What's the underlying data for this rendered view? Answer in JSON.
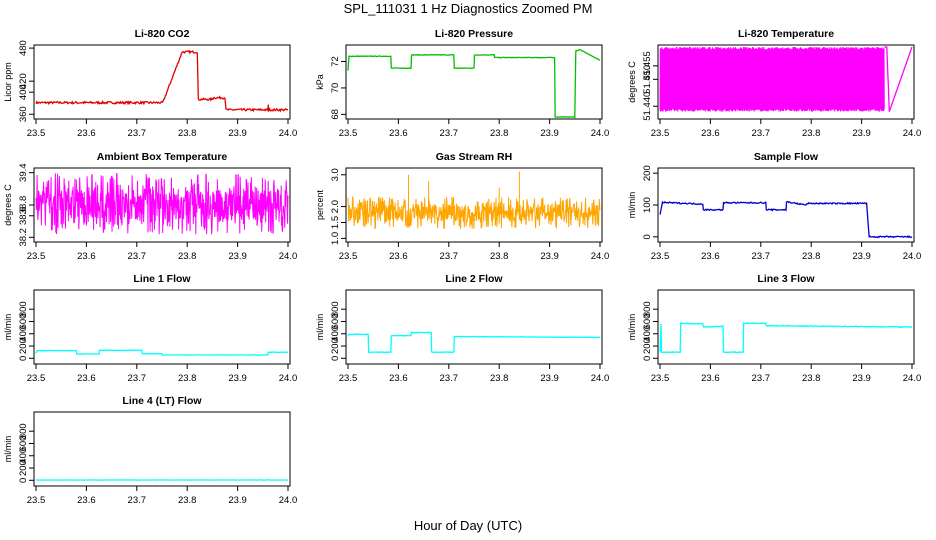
{
  "figure": {
    "title": "SPL_111031  1 Hz Diagnostics Zoomed PM",
    "xlabel": "Hour of Day (UTC)"
  },
  "chart_data": [
    {
      "type": "line",
      "title": "Li-820 CO2",
      "ylabel": "Licor ppm",
      "color": "#e00000",
      "noise": 2,
      "xlim": [
        23.5,
        24.0
      ],
      "xticks": [
        "23.5",
        "23.6",
        "23.7",
        "23.8",
        "23.9",
        "24.0"
      ],
      "ylim": [
        355,
        482
      ],
      "yticks": [
        "360",
        "400",
        "420",
        "480"
      ],
      "series": [
        {
          "name": "CO2",
          "x": [
            23.5,
            23.75,
            23.752,
            23.79,
            23.792,
            23.82,
            23.822,
            23.85,
            23.852,
            23.875,
            23.877,
            23.96,
            23.961,
            23.962,
            23.97,
            24.0
          ],
          "y": [
            381,
            381,
            382,
            473,
            473,
            473,
            387,
            387,
            390,
            390,
            368,
            368,
            376,
            368,
            368,
            368
          ]
        }
      ]
    },
    {
      "type": "line",
      "title": "Li-820 Pressure",
      "ylabel": "kPa",
      "color": "#00c000",
      "noise": 0.02,
      "xlim": [
        23.5,
        24.0
      ],
      "xticks": [
        "23.5",
        "23.6",
        "23.7",
        "23.8",
        "23.9",
        "24.0"
      ],
      "ylim": [
        67.8,
        73.1
      ],
      "yticks": [
        "68",
        "70",
        "72"
      ],
      "series": [
        {
          "name": "Pressure",
          "x": [
            23.5,
            23.502,
            23.585,
            23.586,
            23.625,
            23.626,
            23.71,
            23.711,
            23.75,
            23.751,
            23.79,
            23.791,
            23.91,
            23.911,
            23.95,
            23.952,
            23.96,
            24.0
          ],
          "y": [
            71.3,
            72.4,
            72.4,
            71.5,
            71.5,
            72.5,
            72.5,
            71.5,
            71.5,
            72.5,
            72.5,
            72.3,
            72.3,
            67.8,
            67.8,
            72.8,
            72.9,
            72.1
          ]
        }
      ]
    },
    {
      "type": "line",
      "title": "Li-820 Temperature",
      "ylabel": "degrees C",
      "color": "#ff00ff",
      "noise": 0,
      "fill": [
        51.438,
        51.462
      ],
      "fillEnd": 23.945,
      "xlim": [
        23.5,
        24.0
      ],
      "xticks": [
        "23.5",
        "23.6",
        "23.7",
        "23.8",
        "23.9",
        "24.0"
      ],
      "ylim": [
        51.436,
        51.462
      ],
      "yticks": [
        "51.440",
        "51.450",
        "51.455"
      ],
      "series": [
        {
          "name": "Temperature",
          "x": [
            23.945,
            23.95,
            23.955,
            24.0
          ],
          "y": [
            51.462,
            51.462,
            51.438,
            51.462
          ]
        }
      ]
    },
    {
      "type": "noise",
      "title": "Ambient Box Temperature",
      "ylabel": "degrees C",
      "color": "#ff00ff",
      "xlim": [
        23.5,
        24.0
      ],
      "xticks": [
        "23.5",
        "23.6",
        "23.7",
        "23.8",
        "23.9",
        "24.0"
      ],
      "ylim": [
        38.15,
        39.45
      ],
      "yticks": [
        "38.2",
        "38.6",
        "38.8",
        "39.4"
      ],
      "band": [
        38.25,
        39.4
      ],
      "center": 38.8
    },
    {
      "type": "noise",
      "title": "Gas Stream RH",
      "ylabel": "percent",
      "color": "#ffa500",
      "xlim": [
        23.5,
        24.0
      ],
      "xticks": [
        "23.5",
        "23.6",
        "23.7",
        "23.8",
        "23.9",
        "24.0"
      ],
      "ylim": [
        0.95,
        3.15
      ],
      "yticks": [
        "1.0",
        "1.5",
        "2.0",
        "3.0"
      ],
      "band": [
        1.3,
        2.3
      ],
      "center": 1.8,
      "spikes": [
        3.0,
        2.8,
        3.1,
        2.6
      ]
    },
    {
      "type": "line",
      "title": "Sample Flow",
      "ylabel": "ml/min",
      "color": "#0000cc",
      "noise": 2,
      "xlim": [
        23.5,
        24.0
      ],
      "xticks": [
        "23.5",
        "23.6",
        "23.7",
        "23.8",
        "23.9",
        "24.0"
      ],
      "ylim": [
        -10,
        210
      ],
      "yticks": [
        "0",
        "100",
        "200"
      ],
      "series": [
        {
          "name": "Sample Flow",
          "x": [
            23.5,
            23.505,
            23.585,
            23.586,
            23.625,
            23.626,
            23.71,
            23.711,
            23.75,
            23.751,
            23.79,
            23.792,
            23.91,
            23.915,
            24.0
          ],
          "y": [
            70,
            108,
            103,
            85,
            85,
            107,
            107,
            85,
            85,
            110,
            100,
            105,
            105,
            0,
            0
          ]
        }
      ]
    },
    {
      "type": "line",
      "title": "Line 1 Flow",
      "ylabel": "ml/min",
      "color": "#00ffff",
      "noise": 3,
      "xlim": [
        23.5,
        24.0
      ],
      "xticks": [
        "23.5",
        "23.6",
        "23.7",
        "23.8",
        "23.9",
        "24.0"
      ],
      "ylim": [
        -60,
        1080
      ],
      "yticks": [
        "0",
        "200",
        "400",
        "600",
        "800"
      ],
      "series": [
        {
          "name": "Line 1",
          "x": [
            23.5,
            23.502,
            23.58,
            23.581,
            23.625,
            23.626,
            23.71,
            23.711,
            23.75,
            23.751,
            23.96,
            23.961,
            24.0
          ],
          "y": [
            80,
            125,
            125,
            70,
            70,
            130,
            130,
            75,
            75,
            55,
            55,
            100,
            100
          ]
        }
      ]
    },
    {
      "type": "line",
      "title": "Line 2 Flow",
      "ylabel": "ml/min",
      "color": "#00ffff",
      "noise": 4,
      "xlim": [
        23.5,
        24.0
      ],
      "xticks": [
        "23.5",
        "23.6",
        "23.7",
        "23.8",
        "23.9",
        "24.0"
      ],
      "ylim": [
        -60,
        1080
      ],
      "yticks": [
        "0",
        "200",
        "400",
        "600",
        "800"
      ],
      "series": [
        {
          "name": "Line 2",
          "x": [
            23.5,
            23.502,
            23.54,
            23.541,
            23.585,
            23.586,
            23.625,
            23.626,
            23.665,
            23.666,
            23.71,
            23.711,
            24.0
          ],
          "y": [
            360,
            390,
            390,
            100,
            100,
            370,
            370,
            420,
            420,
            100,
            100,
            355,
            340
          ]
        }
      ]
    },
    {
      "type": "line",
      "title": "Line 3 Flow",
      "ylabel": "ml/min",
      "color": "#00ffff",
      "noise": 6,
      "xlim": [
        23.5,
        24.0
      ],
      "xticks": [
        "23.5",
        "23.6",
        "23.7",
        "23.8",
        "23.9",
        "24.0"
      ],
      "ylim": [
        -60,
        1080
      ],
      "yticks": [
        "0",
        "200",
        "400",
        "600",
        "800"
      ],
      "series": [
        {
          "name": "Line 3",
          "x": [
            23.5,
            23.502,
            23.503,
            23.54,
            23.541,
            23.585,
            23.586,
            23.625,
            23.626,
            23.665,
            23.666,
            23.71,
            23.711,
            24.0
          ],
          "y": [
            100,
            560,
            100,
            100,
            570,
            560,
            510,
            520,
            100,
            100,
            570,
            570,
            530,
            510
          ]
        }
      ]
    },
    {
      "type": "line",
      "title": "Line 4 (LT) Flow",
      "ylabel": "ml/min",
      "color": "#00ffff",
      "noise": 2,
      "xlim": [
        23.5,
        24.0
      ],
      "xticks": [
        "23.5",
        "23.6",
        "23.7",
        "23.8",
        "23.9",
        "24.0"
      ],
      "ylim": [
        -60,
        1080
      ],
      "yticks": [
        "0",
        "200",
        "400",
        "600",
        "800"
      ],
      "series": [
        {
          "name": "Line 4 (LT)",
          "x": [
            23.5,
            24.0
          ],
          "y": [
            5,
            5
          ]
        }
      ]
    }
  ]
}
